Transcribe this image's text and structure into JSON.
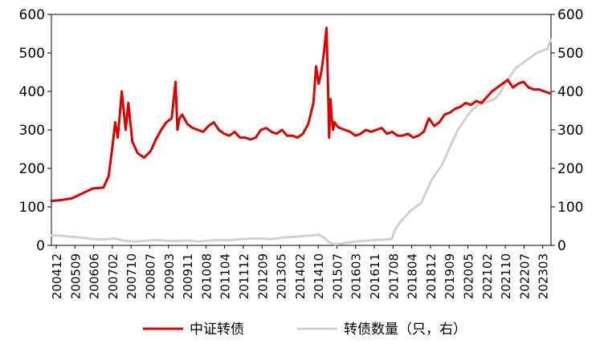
{
  "chart_data": {
    "type": "line",
    "grid": false,
    "legend_position": "bottom",
    "y_left": {
      "min": 0,
      "max": 600,
      "ticks": [
        "0",
        "100",
        "200",
        "300",
        "400",
        "500",
        "600"
      ]
    },
    "y_right": {
      "min": 0,
      "max": 600,
      "ticks": [
        "0",
        "100",
        "200",
        "300",
        "400",
        "500",
        "600"
      ]
    },
    "x_ticks": [
      "200412",
      "200509",
      "200606",
      "200702",
      "200710",
      "200807",
      "200903",
      "200911",
      "201008",
      "201104",
      "201112",
      "201209",
      "201305",
      "201402",
      "201410",
      "201507",
      "201603",
      "201611",
      "201708",
      "201804",
      "201812",
      "201909",
      "202005",
      "202102",
      "202110",
      "202207",
      "202303"
    ],
    "series": [
      {
        "name": "中证转债",
        "axis": "left",
        "color": "#e00000",
        "x": [
          2004.92,
          2005.3,
          2005.7,
          2006.1,
          2006.5,
          2006.9,
          2007.1,
          2007.25,
          2007.35,
          2007.45,
          2007.6,
          2007.75,
          2007.85,
          2008.0,
          2008.2,
          2008.45,
          2008.7,
          2008.9,
          2009.1,
          2009.3,
          2009.5,
          2009.65,
          2009.72,
          2009.8,
          2009.9,
          2010.1,
          2010.3,
          2010.5,
          2010.7,
          2010.9,
          2011.1,
          2011.3,
          2011.5,
          2011.7,
          2011.9,
          2012.1,
          2012.3,
          2012.5,
          2012.7,
          2012.9,
          2013.1,
          2013.3,
          2013.5,
          2013.7,
          2013.9,
          2014.1,
          2014.3,
          2014.5,
          2014.7,
          2014.9,
          2015.0,
          2015.1,
          2015.2,
          2015.3,
          2015.4,
          2015.45,
          2015.5,
          2015.55,
          2015.6,
          2015.65,
          2015.7,
          2015.8,
          2015.9,
          2016.1,
          2016.3,
          2016.5,
          2016.7,
          2016.9,
          2017.1,
          2017.3,
          2017.5,
          2017.7,
          2017.9,
          2018.1,
          2018.3,
          2018.5,
          2018.7,
          2018.9,
          2019.1,
          2019.3,
          2019.5,
          2019.7,
          2019.9,
          2020.1,
          2020.3,
          2020.5,
          2020.7,
          2020.9,
          2021.1,
          2021.3,
          2021.5,
          2021.7,
          2021.9,
          2022.1,
          2022.3,
          2022.5,
          2022.7,
          2022.9,
          2023.1,
          2023.3,
          2023.5,
          2023.7,
          2023.9
        ],
        "values": [
          115,
          118,
          122,
          135,
          148,
          150,
          180,
          260,
          320,
          280,
          400,
          300,
          370,
          270,
          240,
          228,
          245,
          275,
          300,
          320,
          330,
          425,
          300,
          330,
          340,
          315,
          305,
          300,
          295,
          310,
          320,
          300,
          290,
          285,
          295,
          280,
          280,
          275,
          280,
          300,
          305,
          295,
          290,
          300,
          285,
          285,
          280,
          290,
          315,
          370,
          465,
          420,
          450,
          500,
          565,
          430,
          280,
          380,
          330,
          300,
          320,
          310,
          305,
          300,
          295,
          285,
          290,
          300,
          295,
          300,
          305,
          290,
          295,
          285,
          285,
          290,
          280,
          285,
          295,
          330,
          310,
          320,
          340,
          345,
          355,
          360,
          370,
          365,
          375,
          370,
          385,
          400,
          410,
          420,
          430,
          410,
          420,
          425,
          410,
          405,
          405,
          400,
          395
        ]
      },
      {
        "name": "转债数量（只，右）",
        "axis": "right",
        "color": "#d0d0d0",
        "x": [
          2004.92,
          2005.3,
          2005.7,
          2006.1,
          2006.5,
          2006.9,
          2007.3,
          2007.7,
          2008.1,
          2008.5,
          2008.9,
          2009.3,
          2009.7,
          2010.1,
          2010.5,
          2010.9,
          2011.3,
          2011.7,
          2012.1,
          2012.5,
          2012.9,
          2013.3,
          2013.7,
          2014.1,
          2014.5,
          2014.9,
          2015.1,
          2015.3,
          2015.5,
          2015.7,
          2015.9,
          2016.1,
          2016.5,
          2016.9,
          2017.3,
          2017.7,
          2017.9,
          2018.0,
          2018.2,
          2018.4,
          2018.6,
          2018.8,
          2019.0,
          2019.2,
          2019.4,
          2019.6,
          2019.8,
          2020.0,
          2020.2,
          2020.4,
          2020.6,
          2020.8,
          2021.0,
          2021.2,
          2021.4,
          2021.6,
          2021.8,
          2022.0,
          2022.2,
          2022.4,
          2022.6,
          2022.8,
          2023.0,
          2023.2,
          2023.4,
          2023.6,
          2023.8,
          2023.95
        ],
        "values": [
          26,
          25,
          22,
          20,
          16,
          15,
          18,
          12,
          10,
          12,
          14,
          12,
          11,
          13,
          10,
          12,
          14,
          13,
          16,
          17,
          18,
          16,
          20,
          22,
          24,
          26,
          28,
          20,
          8,
          3,
          4,
          6,
          10,
          12,
          14,
          15,
          18,
          40,
          60,
          75,
          90,
          100,
          110,
          140,
          170,
          190,
          210,
          240,
          270,
          300,
          320,
          340,
          355,
          365,
          370,
          375,
          380,
          395,
          420,
          440,
          460,
          470,
          480,
          490,
          500,
          505,
          510,
          535
        ]
      }
    ]
  }
}
